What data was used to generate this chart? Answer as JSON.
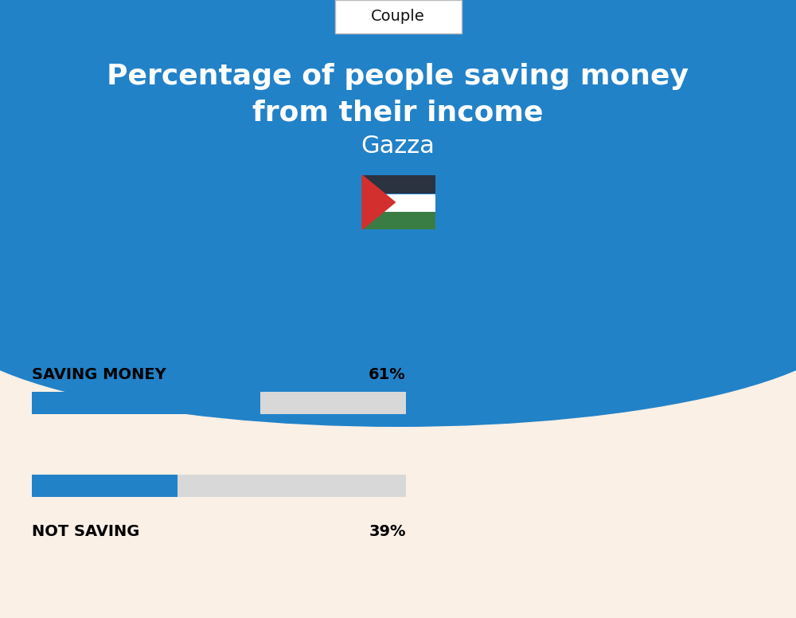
{
  "title_line1": "Percentage of people saving money",
  "title_line2": "from their income",
  "subtitle": "Gazza",
  "tab_label": "Couple",
  "saving_label": "SAVING MONEY",
  "saving_value": 61,
  "saving_pct_label": "61%",
  "not_saving_label": "NOT SAVING",
  "not_saving_value": 39,
  "not_saving_pct_label": "39%",
  "bg_top_color": "#2282C8",
  "bg_bottom_color": "#FAF0E6",
  "bar_fill_color": "#2282C8",
  "bar_bg_color": "#D8D8D8",
  "title_color": "#FFFFFF",
  "subtitle_color": "#FFFFFF",
  "tab_color": "#111111",
  "label_color": "#000000",
  "pct_color": "#000000",
  "flag_black": "#2B3240",
  "flag_white": "#FFFFFF",
  "flag_green": "#3A7D44",
  "flag_red": "#D32F2F"
}
